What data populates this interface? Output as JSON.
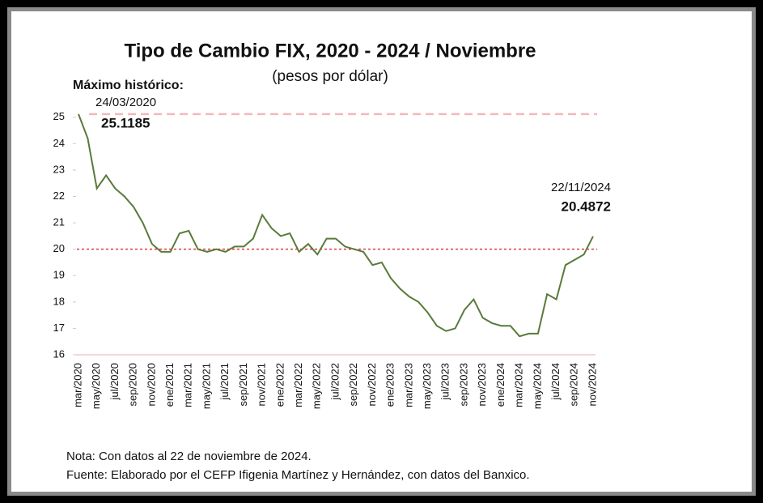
{
  "chart_data": {
    "type": "line",
    "title": "Tipo de Cambio FIX, 2020 - 2024 / Noviembre",
    "subtitle": "(pesos por dólar)",
    "color": "#5a7a3a",
    "categories": [
      "mar/2020",
      null,
      "may/2020",
      null,
      "jul/2020",
      null,
      "sep/2020",
      null,
      "nov/2020",
      null,
      "ene/2021",
      null,
      "mar/2021",
      null,
      "may/2021",
      null,
      "jul/2021",
      null,
      "sep/2021",
      null,
      "nov/2021",
      null,
      "ene/2022",
      null,
      "mar/2022",
      null,
      "may/2022",
      null,
      "jul/2022",
      null,
      "sep/2022",
      null,
      "nov/2022",
      null,
      "ene/2023",
      null,
      "mar/2023",
      null,
      "may/2023",
      null,
      "jul/2023",
      null,
      "sep/2023",
      null,
      "nov/2023",
      null,
      "ene/2024",
      null,
      "mar/2024",
      null,
      "may/2024",
      null,
      "jul/2024",
      null,
      "sep/2024",
      null,
      "nov/2024"
    ],
    "values": [
      25.1185,
      24.2,
      22.3,
      22.8,
      22.3,
      22.0,
      21.6,
      21.0,
      20.2,
      19.9,
      19.9,
      20.6,
      20.7,
      20.0,
      19.9,
      20.0,
      19.9,
      20.1,
      20.1,
      20.4,
      21.3,
      20.8,
      20.5,
      20.6,
      19.9,
      20.2,
      19.8,
      20.4,
      20.4,
      20.1,
      20.0,
      19.9,
      19.4,
      19.5,
      18.9,
      18.5,
      18.2,
      18.0,
      17.6,
      17.1,
      16.9,
      17.0,
      17.7,
      18.1,
      17.4,
      17.2,
      17.1,
      17.1,
      16.7,
      16.8,
      16.8,
      18.3,
      18.1,
      19.4,
      19.6,
      19.8,
      20.4872
    ],
    "ylim": [
      16,
      25.3
    ],
    "yticks": [
      16,
      17,
      18,
      19,
      20,
      21,
      22,
      23,
      24,
      25
    ],
    "reference_lines": [
      {
        "value": 25.1185,
        "color": "#f2b8bc"
      },
      {
        "value": 20,
        "color": "#e03a3a"
      }
    ],
    "annotations": [
      {
        "heading": "Máximo histórico:",
        "date": "24/03/2020",
        "label": "25.1185"
      },
      {
        "date": "22/11/2024",
        "label": "20.4872"
      }
    ],
    "notes": [
      "Nota: Con datos al 22 de noviembre de 2024.",
      "Fuente: Elaborado por el CEFP Ifigenia Martínez y Hernández, con datos del Banxico."
    ]
  }
}
